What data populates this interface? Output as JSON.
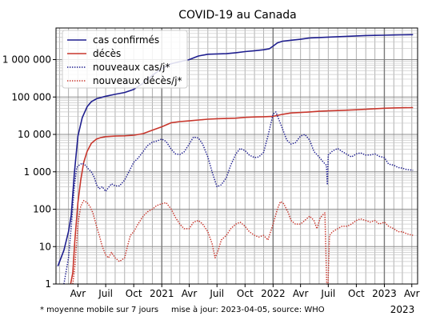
{
  "chart_data": {
    "type": "line",
    "title": "COVID-19 au Canada",
    "yscale": "log",
    "ylim": [
      1,
      7000000
    ],
    "xlim": [
      "2020-01-20",
      "2023-04-20"
    ],
    "grid": true,
    "legend_position": "top-left",
    "y_ticks": [
      {
        "value": 1,
        "label": "1"
      },
      {
        "value": 10,
        "label": "10"
      },
      {
        "value": 100,
        "label": "100"
      },
      {
        "value": 1000,
        "label": "1 000"
      },
      {
        "value": 10000,
        "label": "10 000"
      },
      {
        "value": 100000,
        "label": "100 000"
      },
      {
        "value": 1000000,
        "label": "1 000 000"
      }
    ],
    "x_ticks": [
      {
        "date": "2020-04-01",
        "label": "Avr"
      },
      {
        "date": "2020-07-01",
        "label": "Juil"
      },
      {
        "date": "2020-10-01",
        "label": "Oct"
      },
      {
        "date": "2021-01-01",
        "label": "2021"
      },
      {
        "date": "2021-04-01",
        "label": "Avr"
      },
      {
        "date": "2021-07-01",
        "label": "Juil"
      },
      {
        "date": "2021-10-01",
        "label": "Oct"
      },
      {
        "date": "2022-01-01",
        "label": "2022"
      },
      {
        "date": "2022-04-01",
        "label": "Avr"
      },
      {
        "date": "2022-07-01",
        "label": "Juil"
      },
      {
        "date": "2022-10-01",
        "label": "Oct"
      },
      {
        "date": "2023-01-01",
        "label": "2023"
      },
      {
        "date": "2023-04-01",
        "label": "Avr"
      }
    ],
    "x_axis_year_label": "2023",
    "series": [
      {
        "name": "cas confirmés",
        "color": "#1f1f8f",
        "style": "solid",
        "points": [
          [
            "2020-01-26",
            3
          ],
          [
            "2020-02-15",
            8
          ],
          [
            "2020-03-01",
            25
          ],
          [
            "2020-03-10",
            70
          ],
          [
            "2020-03-20",
            900
          ],
          [
            "2020-04-01",
            9000
          ],
          [
            "2020-04-15",
            28000
          ],
          [
            "2020-05-01",
            55000
          ],
          [
            "2020-05-15",
            75000
          ],
          [
            "2020-06-01",
            90000
          ],
          [
            "2020-07-01",
            105000
          ],
          [
            "2020-08-01",
            118000
          ],
          [
            "2020-09-01",
            132000
          ],
          [
            "2020-10-01",
            160000
          ],
          [
            "2020-11-01",
            235000
          ],
          [
            "2020-12-01",
            380000
          ],
          [
            "2021-01-01",
            580000
          ],
          [
            "2021-02-01",
            780000
          ],
          [
            "2021-03-01",
            880000
          ],
          [
            "2021-04-01",
            1000000
          ],
          [
            "2021-05-01",
            1250000
          ],
          [
            "2021-06-01",
            1390000
          ],
          [
            "2021-07-01",
            1420000
          ],
          [
            "2021-08-01",
            1440000
          ],
          [
            "2021-09-01",
            1530000
          ],
          [
            "2021-10-01",
            1640000
          ],
          [
            "2021-11-01",
            1730000
          ],
          [
            "2021-12-01",
            1830000
          ],
          [
            "2021-12-20",
            1950000
          ],
          [
            "2022-01-01",
            2300000
          ],
          [
            "2022-01-15",
            2800000
          ],
          [
            "2022-02-01",
            3100000
          ],
          [
            "2022-03-01",
            3300000
          ],
          [
            "2022-04-01",
            3500000
          ],
          [
            "2022-05-01",
            3800000
          ],
          [
            "2022-06-01",
            3900000
          ],
          [
            "2022-07-01",
            4000000
          ],
          [
            "2022-08-01",
            4100000
          ],
          [
            "2022-09-01",
            4200000
          ],
          [
            "2022-10-01",
            4300000
          ],
          [
            "2022-11-01",
            4400000
          ],
          [
            "2022-12-01",
            4450000
          ],
          [
            "2023-01-01",
            4500000
          ],
          [
            "2023-02-01",
            4550000
          ],
          [
            "2023-03-01",
            4600000
          ],
          [
            "2023-04-05",
            4650000
          ]
        ]
      },
      {
        "name": "décès",
        "color": "#c8372d",
        "style": "solid",
        "points": [
          [
            "2020-03-08",
            1
          ],
          [
            "2020-03-15",
            2
          ],
          [
            "2020-03-22",
            15
          ],
          [
            "2020-04-01",
            150
          ],
          [
            "2020-04-10",
            600
          ],
          [
            "2020-04-20",
            1800
          ],
          [
            "2020-05-01",
            3500
          ],
          [
            "2020-05-15",
            5800
          ],
          [
            "2020-06-01",
            7500
          ],
          [
            "2020-06-15",
            8200
          ],
          [
            "2020-07-01",
            8700
          ],
          [
            "2020-08-01",
            9000
          ],
          [
            "2020-09-01",
            9150
          ],
          [
            "2020-10-01",
            9500
          ],
          [
            "2020-11-01",
            10500
          ],
          [
            "2020-12-01",
            13000
          ],
          [
            "2021-01-01",
            16000
          ],
          [
            "2021-02-01",
            20500
          ],
          [
            "2021-03-01",
            22000
          ],
          [
            "2021-04-01",
            23000
          ],
          [
            "2021-05-01",
            24300
          ],
          [
            "2021-06-01",
            25500
          ],
          [
            "2021-07-01",
            26200
          ],
          [
            "2021-08-01",
            26700
          ],
          [
            "2021-09-01",
            27200
          ],
          [
            "2021-10-01",
            28500
          ],
          [
            "2021-11-01",
            29200
          ],
          [
            "2021-12-01",
            29700
          ],
          [
            "2022-01-01",
            30500
          ],
          [
            "2022-02-01",
            34500
          ],
          [
            "2022-03-01",
            37500
          ],
          [
            "2022-04-01",
            38500
          ],
          [
            "2022-05-01",
            40000
          ],
          [
            "2022-06-01",
            41500
          ],
          [
            "2022-07-01",
            42500
          ],
          [
            "2022-08-01",
            43500
          ],
          [
            "2022-09-01",
            44500
          ],
          [
            "2022-10-01",
            45500
          ],
          [
            "2022-11-01",
            47000
          ],
          [
            "2022-12-01",
            48500
          ],
          [
            "2023-01-01",
            50000
          ],
          [
            "2023-02-01",
            51000
          ],
          [
            "2023-03-01",
            51500
          ],
          [
            "2023-04-05",
            52000
          ]
        ]
      },
      {
        "name": "nouveaux cas/j*",
        "color": "#1f1f8f",
        "style": "dotted",
        "points": [
          [
            "2020-02-15",
            1
          ],
          [
            "2020-03-01",
            5
          ],
          [
            "2020-03-10",
            35
          ],
          [
            "2020-03-20",
            400
          ],
          [
            "2020-03-28",
            1300
          ],
          [
            "2020-04-05",
            1500
          ],
          [
            "2020-04-15",
            1700
          ],
          [
            "2020-04-25",
            1500
          ],
          [
            "2020-05-05",
            1200
          ],
          [
            "2020-05-15",
            1000
          ],
          [
            "2020-05-25",
            700
          ],
          [
            "2020-06-01",
            450
          ],
          [
            "2020-06-10",
            350
          ],
          [
            "2020-06-20",
            400
          ],
          [
            "2020-07-01",
            300
          ],
          [
            "2020-07-10",
            380
          ],
          [
            "2020-07-20",
            480
          ],
          [
            "2020-08-01",
            420
          ],
          [
            "2020-08-15",
            420
          ],
          [
            "2020-09-01",
            600
          ],
          [
            "2020-09-15",
            1000
          ],
          [
            "2020-10-01",
            1800
          ],
          [
            "2020-10-15",
            2300
          ],
          [
            "2020-11-01",
            3500
          ],
          [
            "2020-11-15",
            5000
          ],
          [
            "2020-12-01",
            6200
          ],
          [
            "2020-12-15",
            6600
          ],
          [
            "2021-01-01",
            7500
          ],
          [
            "2021-01-15",
            6500
          ],
          [
            "2021-02-01",
            4000
          ],
          [
            "2021-02-15",
            3000
          ],
          [
            "2021-03-01",
            2900
          ],
          [
            "2021-03-15",
            3400
          ],
          [
            "2021-04-01",
            5500
          ],
          [
            "2021-04-15",
            8500
          ],
          [
            "2021-05-01",
            8000
          ],
          [
            "2021-05-15",
            5500
          ],
          [
            "2021-06-01",
            2500
          ],
          [
            "2021-06-15",
            1000
          ],
          [
            "2021-07-01",
            400
          ],
          [
            "2021-07-15",
            450
          ],
          [
            "2021-08-01",
            700
          ],
          [
            "2021-08-15",
            1500
          ],
          [
            "2021-09-01",
            3000
          ],
          [
            "2021-09-15",
            4200
          ],
          [
            "2021-10-01",
            3700
          ],
          [
            "2021-10-15",
            2800
          ],
          [
            "2021-11-01",
            2400
          ],
          [
            "2021-11-15",
            2500
          ],
          [
            "2021-12-01",
            3300
          ],
          [
            "2021-12-15",
            9000
          ],
          [
            "2022-01-01",
            35000
          ],
          [
            "2022-01-10",
            40000
          ],
          [
            "2022-01-20",
            25000
          ],
          [
            "2022-02-01",
            14000
          ],
          [
            "2022-02-15",
            7000
          ],
          [
            "2022-03-01",
            5500
          ],
          [
            "2022-03-15",
            6000
          ],
          [
            "2022-04-01",
            9000
          ],
          [
            "2022-04-15",
            10000
          ],
          [
            "2022-05-01",
            7000
          ],
          [
            "2022-05-15",
            3500
          ],
          [
            "2022-06-01",
            2500
          ],
          [
            "2022-06-15",
            1800
          ],
          [
            "2022-06-25",
            1500
          ],
          [
            "2022-06-28",
            450
          ],
          [
            "2022-07-01",
            2800
          ],
          [
            "2022-07-15",
            3600
          ],
          [
            "2022-08-01",
            4200
          ],
          [
            "2022-08-15",
            3500
          ],
          [
            "2022-09-01",
            2900
          ],
          [
            "2022-09-15",
            2500
          ],
          [
            "2022-10-01",
            3000
          ],
          [
            "2022-10-15",
            3200
          ],
          [
            "2022-11-01",
            2800
          ],
          [
            "2022-11-15",
            2800
          ],
          [
            "2022-12-01",
            3000
          ],
          [
            "2022-12-15",
            2600
          ],
          [
            "2023-01-01",
            2400
          ],
          [
            "2023-01-15",
            1600
          ],
          [
            "2023-02-01",
            1500
          ],
          [
            "2023-02-15",
            1300
          ],
          [
            "2023-03-01",
            1250
          ],
          [
            "2023-03-15",
            1150
          ],
          [
            "2023-04-05",
            1100
          ]
        ]
      },
      {
        "name": "nouveaux décès/j*",
        "color": "#c8372d",
        "style": "dotted",
        "points": [
          [
            "2020-03-15",
            1
          ],
          [
            "2020-03-22",
            3
          ],
          [
            "2020-04-01",
            40
          ],
          [
            "2020-04-10",
            120
          ],
          [
            "2020-04-20",
            170
          ],
          [
            "2020-05-01",
            150
          ],
          [
            "2020-05-10",
            120
          ],
          [
            "2020-05-20",
            80
          ],
          [
            "2020-06-01",
            35
          ],
          [
            "2020-06-10",
            20
          ],
          [
            "2020-06-20",
            10
          ],
          [
            "2020-07-01",
            6
          ],
          [
            "2020-07-10",
            5
          ],
          [
            "2020-07-20",
            7
          ],
          [
            "2020-08-01",
            5
          ],
          [
            "2020-08-15",
            4
          ],
          [
            "2020-09-01",
            5
          ],
          [
            "2020-09-10",
            10
          ],
          [
            "2020-09-20",
            20
          ],
          [
            "2020-10-01",
            25
          ],
          [
            "2020-10-15",
            40
          ],
          [
            "2020-11-01",
            65
          ],
          [
            "2020-11-15",
            85
          ],
          [
            "2020-12-01",
            100
          ],
          [
            "2020-12-15",
            125
          ],
          [
            "2021-01-01",
            140
          ],
          [
            "2021-01-15",
            150
          ],
          [
            "2021-02-01",
            100
          ],
          [
            "2021-02-15",
            60
          ],
          [
            "2021-03-01",
            40
          ],
          [
            "2021-03-15",
            30
          ],
          [
            "2021-04-01",
            30
          ],
          [
            "2021-04-15",
            45
          ],
          [
            "2021-05-01",
            50
          ],
          [
            "2021-05-15",
            40
          ],
          [
            "2021-06-01",
            25
          ],
          [
            "2021-06-15",
            12
          ],
          [
            "2021-06-25",
            5
          ],
          [
            "2021-07-05",
            8
          ],
          [
            "2021-07-15",
            15
          ],
          [
            "2021-08-01",
            20
          ],
          [
            "2021-08-15",
            30
          ],
          [
            "2021-09-01",
            40
          ],
          [
            "2021-09-15",
            45
          ],
          [
            "2021-10-01",
            35
          ],
          [
            "2021-10-15",
            25
          ],
          [
            "2021-11-01",
            20
          ],
          [
            "2021-11-15",
            18
          ],
          [
            "2021-12-01",
            20
          ],
          [
            "2021-12-15",
            15
          ],
          [
            "2022-01-01",
            40
          ],
          [
            "2022-01-15",
            100
          ],
          [
            "2022-01-25",
            160
          ],
          [
            "2022-02-05",
            140
          ],
          [
            "2022-02-20",
            80
          ],
          [
            "2022-03-01",
            50
          ],
          [
            "2022-03-15",
            40
          ],
          [
            "2022-04-01",
            40
          ],
          [
            "2022-04-15",
            50
          ],
          [
            "2022-05-01",
            65
          ],
          [
            "2022-05-15",
            50
          ],
          [
            "2022-05-25",
            30
          ],
          [
            "2022-06-05",
            60
          ],
          [
            "2022-06-20",
            80
          ],
          [
            "2022-06-26",
            1
          ],
          [
            "2022-06-30",
            1
          ],
          [
            "2022-07-05",
            20
          ],
          [
            "2022-07-15",
            25
          ],
          [
            "2022-08-01",
            30
          ],
          [
            "2022-08-15",
            35
          ],
          [
            "2022-09-01",
            35
          ],
          [
            "2022-09-15",
            40
          ],
          [
            "2022-10-01",
            50
          ],
          [
            "2022-10-15",
            55
          ],
          [
            "2022-11-01",
            50
          ],
          [
            "2022-11-15",
            45
          ],
          [
            "2022-12-01",
            50
          ],
          [
            "2022-12-15",
            40
          ],
          [
            "2023-01-01",
            45
          ],
          [
            "2023-01-15",
            35
          ],
          [
            "2023-02-01",
            30
          ],
          [
            "2023-02-15",
            25
          ],
          [
            "2023-03-01",
            25
          ],
          [
            "2023-03-15",
            22
          ],
          [
            "2023-04-05",
            20
          ]
        ]
      }
    ]
  },
  "footnote": {
    "moving_average": "* moyenne mobile sur 7 jours",
    "update_source": "mise à jour: 2023-04-05, source: WHO"
  }
}
